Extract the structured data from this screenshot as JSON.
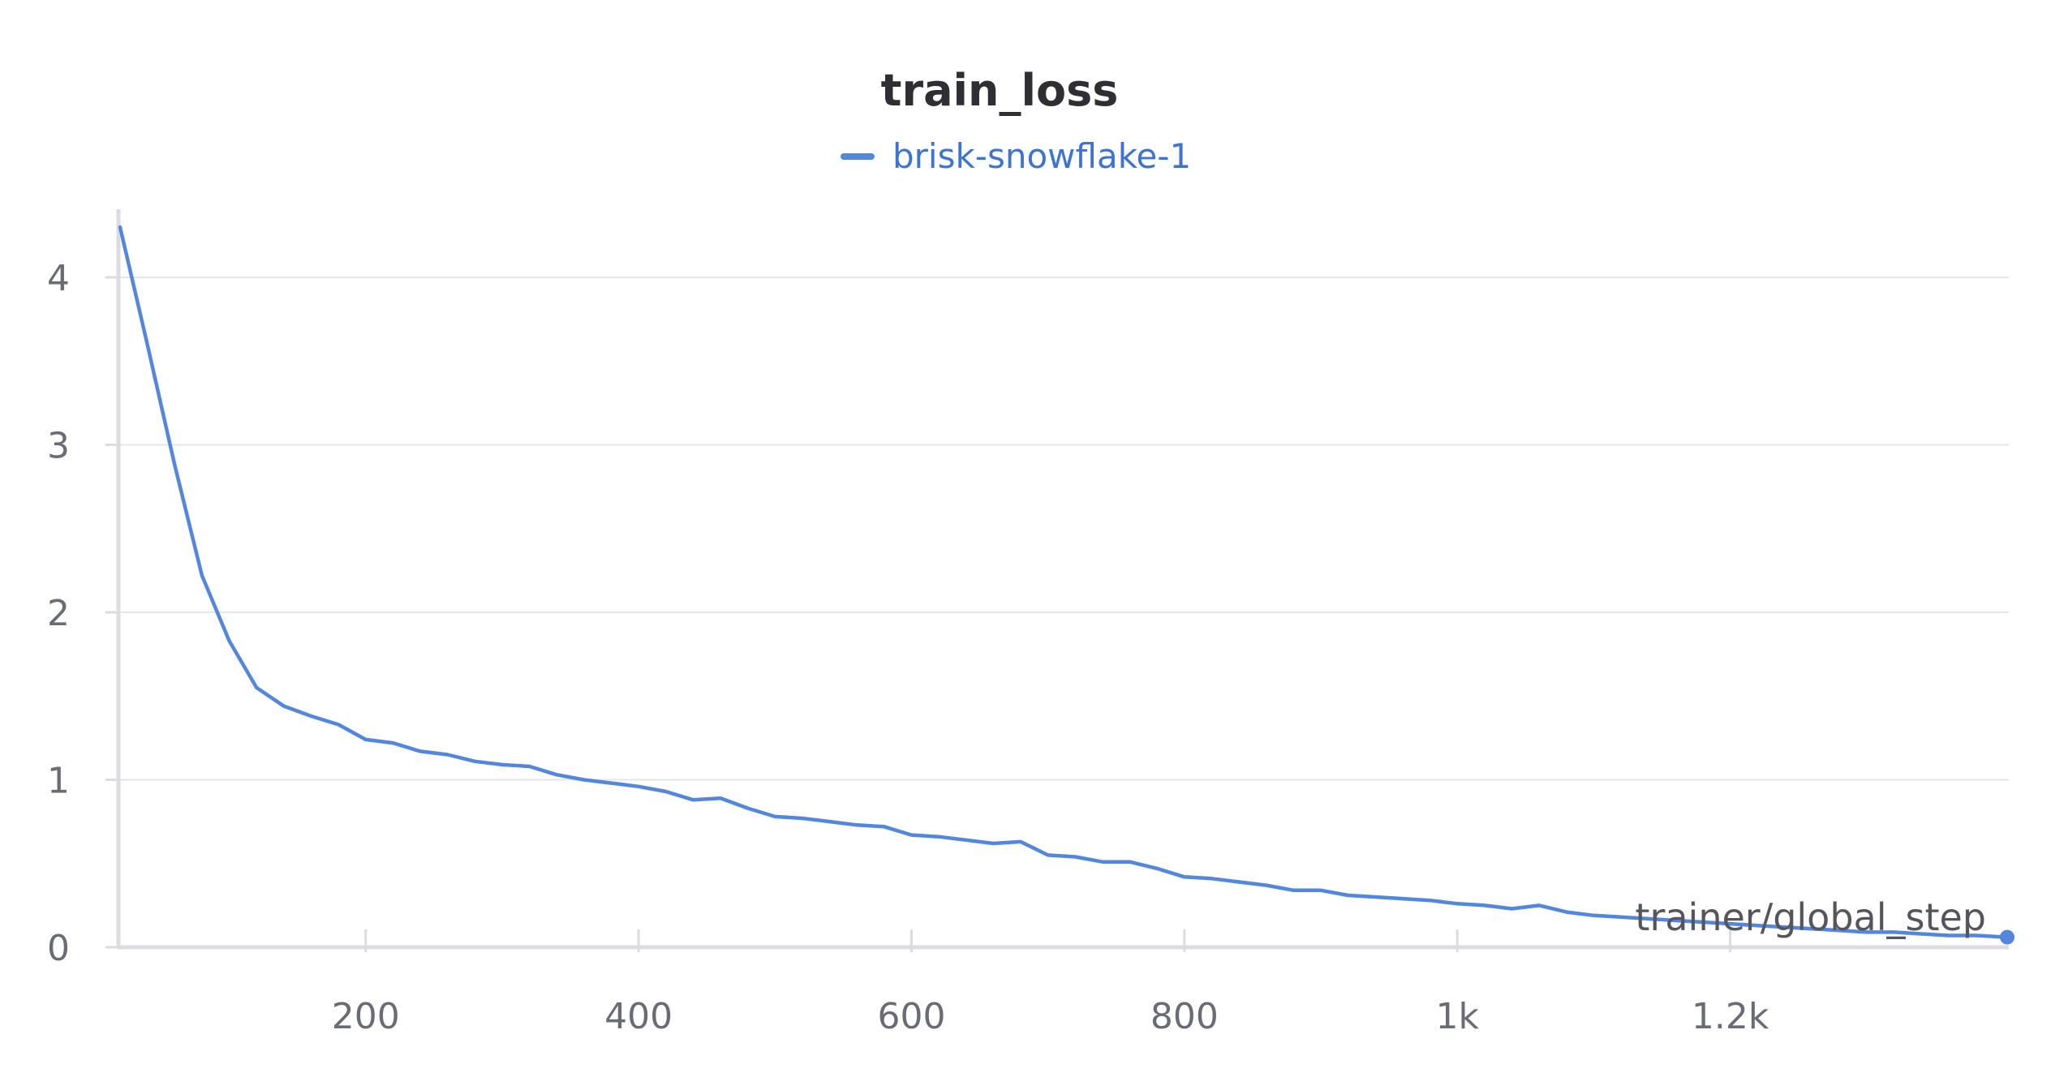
{
  "chart_data": {
    "type": "line",
    "title": "train_loss",
    "xlabel": "trainer/global_step",
    "ylabel": "",
    "xlim": [
      20,
      1403
    ],
    "ylim": [
      0,
      4.4
    ],
    "grid": true,
    "legend_position": "top-center",
    "x_ticks": [
      {
        "value": 200,
        "label": "200"
      },
      {
        "value": 400,
        "label": "400"
      },
      {
        "value": 600,
        "label": "600"
      },
      {
        "value": 800,
        "label": "800"
      },
      {
        "value": 1000,
        "label": "1k"
      },
      {
        "value": 1200,
        "label": "1.2k"
      }
    ],
    "y_ticks": [
      {
        "value": 0,
        "label": "0"
      },
      {
        "value": 1,
        "label": "1"
      },
      {
        "value": 2,
        "label": "2"
      },
      {
        "value": 3,
        "label": "3"
      },
      {
        "value": 4,
        "label": "4"
      }
    ],
    "series": [
      {
        "name": "brisk-snowflake-1",
        "color": "#5387dd",
        "x": [
          20,
          40,
          60,
          80,
          100,
          120,
          140,
          160,
          180,
          200,
          220,
          240,
          260,
          280,
          300,
          320,
          340,
          360,
          380,
          400,
          420,
          440,
          460,
          480,
          500,
          520,
          540,
          560,
          580,
          600,
          620,
          640,
          660,
          680,
          700,
          720,
          740,
          760,
          780,
          800,
          820,
          840,
          860,
          880,
          900,
          920,
          940,
          960,
          980,
          1000,
          1020,
          1040,
          1060,
          1080,
          1100,
          1120,
          1140,
          1160,
          1180,
          1200,
          1220,
          1240,
          1260,
          1280,
          1300,
          1320,
          1340,
          1360,
          1380,
          1403
        ],
        "y": [
          4.3,
          3.6,
          2.88,
          2.22,
          1.83,
          1.55,
          1.44,
          1.38,
          1.33,
          1.24,
          1.22,
          1.17,
          1.15,
          1.11,
          1.09,
          1.08,
          1.03,
          1.0,
          0.98,
          0.96,
          0.93,
          0.88,
          0.89,
          0.83,
          0.78,
          0.77,
          0.75,
          0.73,
          0.72,
          0.67,
          0.66,
          0.64,
          0.62,
          0.63,
          0.55,
          0.54,
          0.51,
          0.51,
          0.47,
          0.42,
          0.41,
          0.39,
          0.37,
          0.34,
          0.34,
          0.31,
          0.3,
          0.29,
          0.28,
          0.26,
          0.25,
          0.23,
          0.25,
          0.21,
          0.19,
          0.18,
          0.17,
          0.16,
          0.15,
          0.14,
          0.13,
          0.12,
          0.11,
          0.1,
          0.09,
          0.09,
          0.08,
          0.07,
          0.07,
          0.06
        ]
      }
    ]
  }
}
